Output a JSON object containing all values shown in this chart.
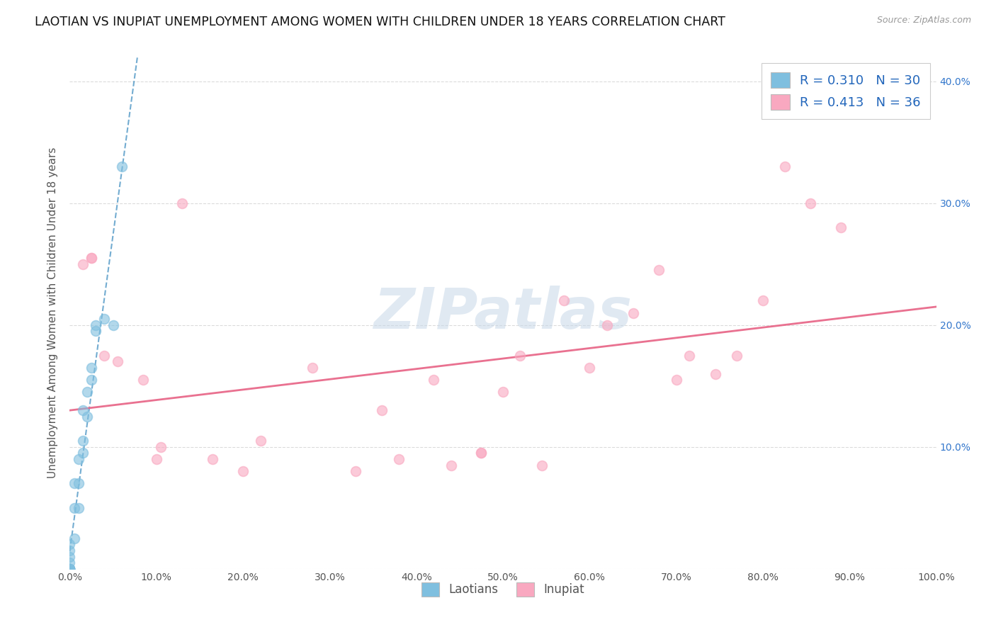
{
  "title": "LAOTIAN VS INUPIAT UNEMPLOYMENT AMONG WOMEN WITH CHILDREN UNDER 18 YEARS CORRELATION CHART",
  "source": "Source: ZipAtlas.com",
  "ylabel": "Unemployment Among Women with Children Under 18 years",
  "xlim": [
    0.0,
    1.0
  ],
  "ylim": [
    0.0,
    0.42
  ],
  "xticks": [
    0.0,
    0.1,
    0.2,
    0.3,
    0.4,
    0.5,
    0.6,
    0.7,
    0.8,
    0.9,
    1.0
  ],
  "xticklabels": [
    "0.0%",
    "10.0%",
    "20.0%",
    "30.0%",
    "40.0%",
    "50.0%",
    "60.0%",
    "70.0%",
    "80.0%",
    "90.0%",
    "100.0%"
  ],
  "yticks_left": [
    0.0,
    0.1,
    0.2,
    0.3,
    0.4
  ],
  "yticks_right": [
    0.1,
    0.2,
    0.3,
    0.4
  ],
  "yticklabels_left": [
    "",
    "",
    "",
    "",
    ""
  ],
  "yticklabels_right": [
    "10.0%",
    "20.0%",
    "30.0%",
    "40.0%"
  ],
  "legend_bottom": [
    "Laotians",
    "Inupiat"
  ],
  "R_laotian": 0.31,
  "N_laotian": 30,
  "R_inupiat": 0.413,
  "N_inupiat": 36,
  "laotian_color": "#7fbfdf",
  "inupiat_color": "#f9a8c0",
  "laotian_line_color": "#5b9ec9",
  "inupiat_line_color": "#e8698a",
  "watermark_text": "ZIPatlas",
  "laotian_x": [
    0.0,
    0.0,
    0.0,
    0.0,
    0.0,
    0.0,
    0.0,
    0.0,
    0.0,
    0.0,
    0.0,
    0.0,
    0.005,
    0.005,
    0.005,
    0.01,
    0.01,
    0.01,
    0.015,
    0.015,
    0.015,
    0.02,
    0.02,
    0.025,
    0.025,
    0.03,
    0.03,
    0.04,
    0.05,
    0.06
  ],
  "laotian_y": [
    0.0,
    0.0,
    0.0,
    0.0,
    0.0,
    0.0,
    0.0,
    0.0,
    0.005,
    0.01,
    0.015,
    0.02,
    0.025,
    0.05,
    0.07,
    0.05,
    0.07,
    0.09,
    0.095,
    0.105,
    0.13,
    0.125,
    0.145,
    0.155,
    0.165,
    0.195,
    0.2,
    0.205,
    0.2,
    0.33
  ],
  "inupiat_x": [
    0.015,
    0.025,
    0.025,
    0.04,
    0.055,
    0.085,
    0.1,
    0.105,
    0.13,
    0.165,
    0.2,
    0.22,
    0.28,
    0.33,
    0.36,
    0.38,
    0.42,
    0.44,
    0.475,
    0.475,
    0.5,
    0.52,
    0.545,
    0.57,
    0.6,
    0.62,
    0.65,
    0.68,
    0.7,
    0.715,
    0.745,
    0.77,
    0.8,
    0.825,
    0.855,
    0.89
  ],
  "inupiat_y": [
    0.25,
    0.255,
    0.255,
    0.175,
    0.17,
    0.155,
    0.09,
    0.1,
    0.3,
    0.09,
    0.08,
    0.105,
    0.165,
    0.08,
    0.13,
    0.09,
    0.155,
    0.085,
    0.095,
    0.095,
    0.145,
    0.175,
    0.085,
    0.22,
    0.165,
    0.2,
    0.21,
    0.245,
    0.155,
    0.175,
    0.16,
    0.175,
    0.22,
    0.33,
    0.3,
    0.28
  ],
  "laotian_line_x": [
    0.0,
    0.2
  ],
  "inupiat_line_x": [
    0.0,
    1.0
  ],
  "inupiat_line_y_start": 0.13,
  "inupiat_line_y_end": 0.215
}
